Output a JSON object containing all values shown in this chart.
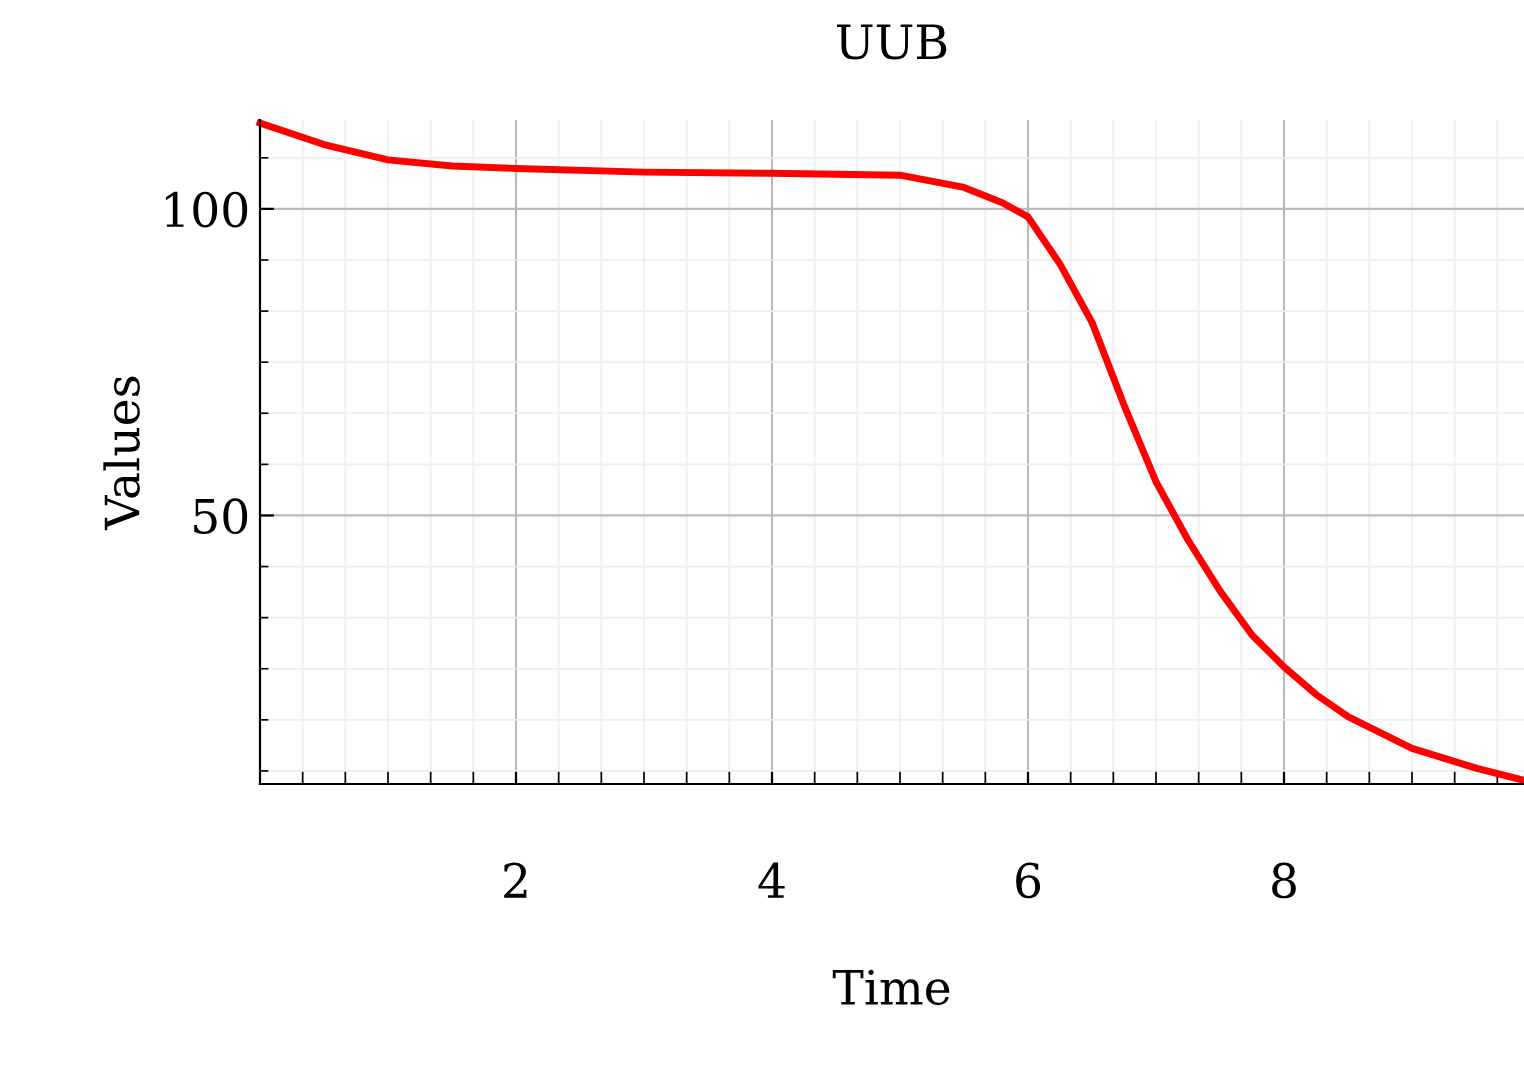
{
  "chart_data": {
    "type": "line",
    "title": "UUB",
    "xlabel": "Time",
    "ylabel": "Values",
    "x": [
      0,
      0.5,
      1,
      1.5,
      2,
      3,
      4,
      5,
      5.5,
      5.8,
      6,
      6.25,
      6.5,
      6.75,
      7,
      7.25,
      7.5,
      7.75,
      8,
      8.25,
      8.5,
      9,
      9.5,
      9.875
    ],
    "series": [
      {
        "color": "#ff0000",
        "values": [
          114,
          110.5,
          108,
          107,
          106.6,
          106,
          105.8,
          105.5,
          103.5,
          101,
          98.7,
          91,
          81.5,
          68,
          55.5,
          46,
          37.7,
          30.5,
          25.3,
          20.8,
          17.2,
          12,
          8.8,
          6.8
        ]
      }
    ],
    "xlim": [
      0,
      9.875
    ],
    "ylim": [
      6.2,
      114.5
    ],
    "xticks": [
      2,
      4,
      6,
      8
    ],
    "yticks": [
      50,
      100
    ],
    "grid": true,
    "marker": "none",
    "line_style": "solid"
  }
}
